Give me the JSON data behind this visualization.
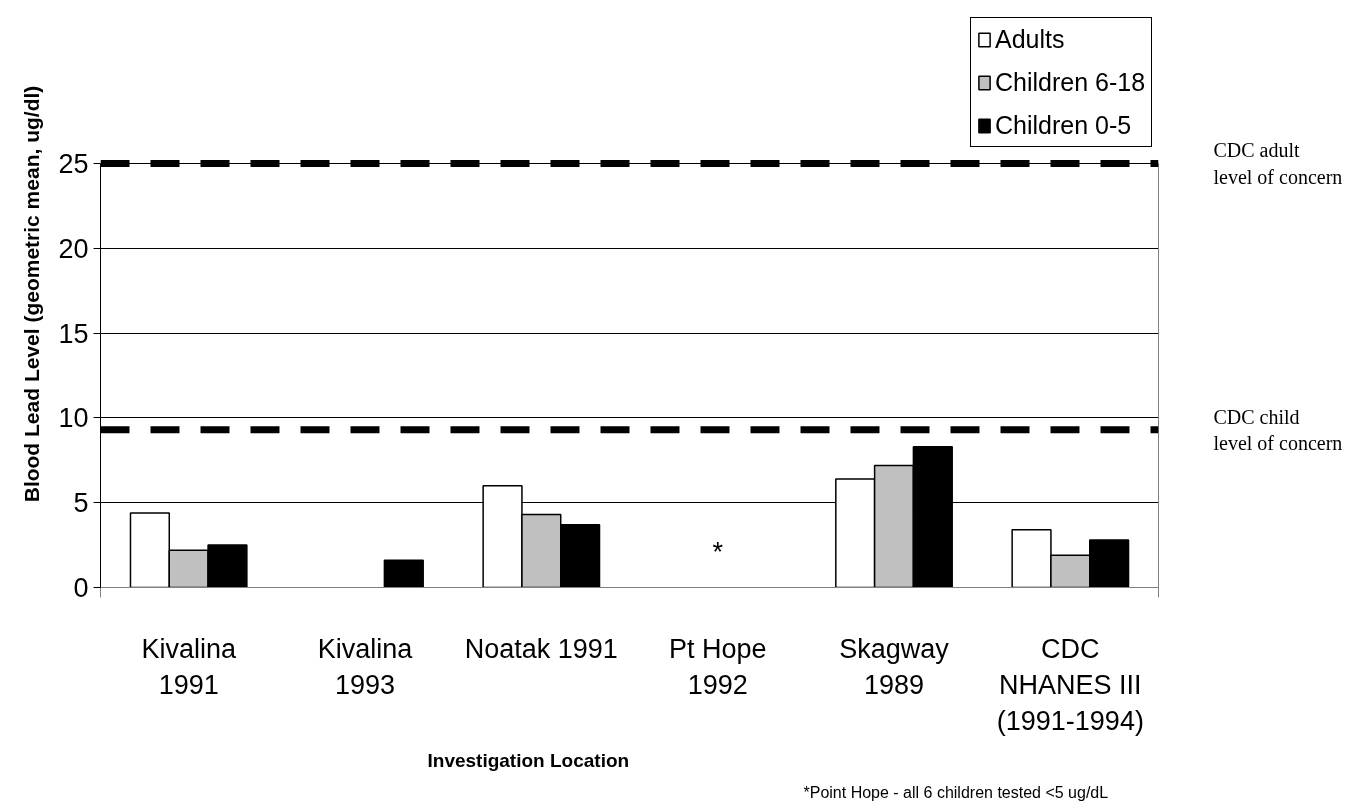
{
  "chart_data": {
    "type": "bar",
    "categories": [
      "Kivalina\n1991",
      "Kivalina\n1993",
      "Noatak 1991",
      "Pt Hope\n1992",
      "Skagway\n1989",
      "CDC\nNHANES III\n(1991-1994)"
    ],
    "series": [
      {
        "name": "Adults",
        "color": "#ffffff",
        "values": [
          4.4,
          null,
          6.0,
          null,
          6.4,
          3.4
        ]
      },
      {
        "name": "Children 6-18",
        "color": "#c0c0c0",
        "values": [
          2.2,
          null,
          4.3,
          null,
          7.2,
          1.9
        ]
      },
      {
        "name": "Children 0-5",
        "color": "#000000",
        "values": [
          2.5,
          1.6,
          3.7,
          null,
          8.3,
          2.8
        ]
      }
    ],
    "xlabel": "Investigation Location",
    "ylabel": "Blood Lead Level (geometric mean, ug/dl)",
    "ylim": [
      0,
      25
    ],
    "yticks": [
      0,
      5,
      10,
      15,
      20,
      25
    ],
    "grid": "y",
    "legend": "top right",
    "ref_lines": [
      {
        "axis": "y",
        "value": 25,
        "label": "CDC adult\nlevel of concern",
        "color": "#000000",
        "line_style": "dashed"
      },
      {
        "axis": "y",
        "value": 9.3,
        "label": "CDC child\nlevel of concern",
        "color": "#000000",
        "line_style": "dashed"
      }
    ],
    "annotations": [
      "*",
      "*Point Hope - all 6 children tested <5 ug/dL"
    ]
  }
}
